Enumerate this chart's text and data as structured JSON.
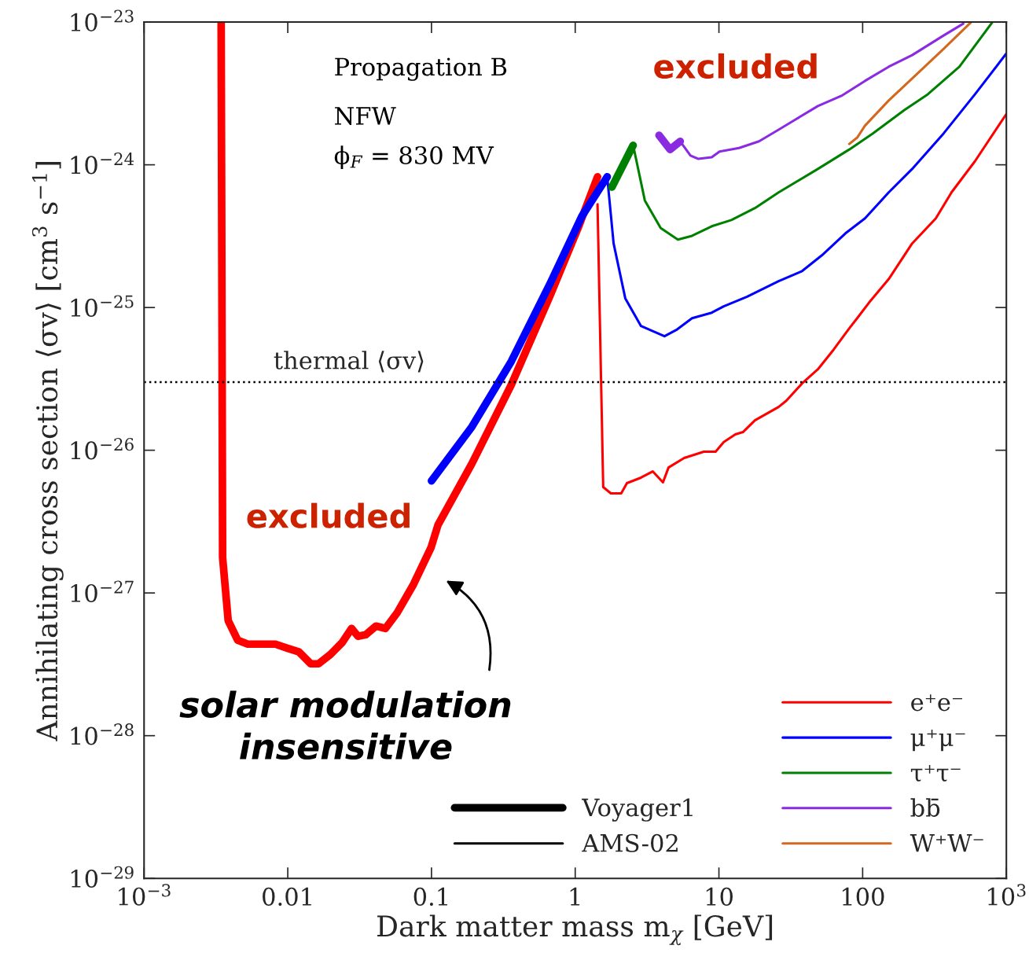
{
  "chart_data": {
    "type": "line",
    "xlabel": "Dark matter mass m$_{χ}$ [GeV]",
    "ylabel": "Annihilating cross section ⟨σv⟩ [cm$^{3}$ s$^{−1}$]",
    "log": "xy",
    "xlim": [
      0.001,
      1000
    ],
    "ylim": [
      1e-29,
      1e-23
    ],
    "xticks": [
      {
        "value": 0.001,
        "label": "10$^{−3}$"
      },
      0.01,
      0.1,
      1,
      10,
      100,
      {
        "value": 1000,
        "label": "10$^{3}$"
      }
    ],
    "yticks": [
      {
        "value": 1e-29,
        "label": "10$^{−29}$"
      },
      {
        "value": 1e-28,
        "label": "10$^{−28}$"
      },
      {
        "value": 1e-27,
        "label": "10$^{−27}$"
      },
      {
        "value": 1e-26,
        "label": "10$^{−26}$"
      },
      {
        "value": 1e-25,
        "label": "10$^{−25}$"
      },
      {
        "value": 1e-24,
        "label": "10$^{−24}$"
      },
      {
        "value": 1e-23,
        "label": "10$^{−23}$"
      }
    ],
    "grid": false,
    "legend": "bottom right",
    "series": [
      {
        "color": "#ff0000",
        "x": [
          0.00344,
          0.00352,
          0.00385,
          0.00448,
          0.00527,
          0.0082,
          0.0099,
          0.01197,
          0.01445,
          0.01637,
          0.0198,
          0.0239,
          0.0278,
          0.0308,
          0.0349,
          0.0411,
          0.0478,
          0.0577,
          0.0743,
          0.0993,
          0.111,
          0.191,
          0.359,
          0.673,
          1.047,
          1.43
        ],
        "values": [
          1e-23,
          1.77e-27,
          6.4e-28,
          4.67e-28,
          4.38e-28,
          4.38e-28,
          4.11e-28,
          3.86e-28,
          3.19e-28,
          3.19e-28,
          3.71e-28,
          4.49e-28,
          5.64e-28,
          4.97e-28,
          5.1e-28,
          5.86e-28,
          5.64e-28,
          7.26e-28,
          1.13e-27,
          2.08e-27,
          3e-27,
          8.07e-27,
          2.87e-26,
          1.23e-25,
          3.61e-25,
          8.24e-25
        ]
      },
      {
        "name": "e⁺e⁻",
        "color": "#ff0000",
        "x": [
          1.43,
          1.566,
          1.77,
          2.09,
          2.29,
          2.87,
          3.46,
          4.08,
          4.46,
          5.73,
          7.85,
          9.48,
          10.8,
          13.0,
          14.7,
          17.8,
          26.0,
          29.4,
          37.9,
          48.8,
          62.8,
          80.7,
          91.6,
          110.6,
          151.7,
          221,
          323,
          415,
          605,
          1000
        ],
        "values": [
          5.29e-25,
          5.52e-27,
          4.99e-27,
          4.99e-27,
          5.88e-27,
          6.43e-27,
          7.11e-27,
          5.96e-27,
          7.57e-27,
          8.83e-27,
          9.77e-27,
          9.77e-27,
          1.14e-26,
          1.29e-26,
          1.34e-26,
          1.62e-26,
          2.01e-26,
          2.22e-26,
          2.94e-26,
          3.69e-26,
          5.07e-26,
          7.14e-26,
          8.41e-26,
          1.08e-25,
          1.58e-25,
          2.81e-25,
          4.21e-25,
          6.4e-25,
          1.06e-24,
          2.27e-24
        ]
      },
      {
        "color": "#0000ff",
        "x": [
          0.1,
          0.191,
          0.359,
          0.673,
          1.114,
          1.67
        ],
        "values": [
          6.1e-27,
          1.46e-26,
          4.19e-26,
          1.49e-25,
          4.37e-25,
          8.24e-25
        ]
      },
      {
        "name": "μ⁺μ⁻",
        "color": "#0000ff",
        "x": [
          1.67,
          1.85,
          2.23,
          2.87,
          4.18,
          5.05,
          6.5,
          8.91,
          10.8,
          15.7,
          26.0,
          37.9,
          52.0,
          75.9,
          103.8,
          151.7,
          221,
          366,
          605,
          1000
        ],
        "values": [
          8.24e-25,
          2.81e-25,
          1.16e-25,
          7.42e-26,
          6.29e-26,
          6.96e-26,
          8.41e-26,
          9.2e-26,
          1.02e-25,
          1.19e-25,
          1.53e-25,
          1.8e-25,
          2.32e-25,
          3.31e-25,
          4.21e-25,
          6.4e-25,
          9.35e-25,
          1.66e-24,
          3.12e-24,
          6.03e-24
        ]
      },
      {
        "color": "#008000",
        "x": [
          1.8,
          2.53
        ],
        "values": [
          6.98e-25,
          1.37e-24
        ]
      },
      {
        "name": "τ⁺τ⁻",
        "color": "#008000",
        "x": [
          2.53,
          3.05,
          3.93,
          5.18,
          6.5,
          8.91,
          12.2,
          17.8,
          26.0,
          48.8,
          80.7,
          117.8,
          195,
          284,
          471,
          800
        ],
        "values": [
          1.37e-24,
          5.63e-25,
          3.61e-25,
          2.99e-25,
          3.18e-25,
          3.71e-25,
          4.1e-25,
          4.97e-25,
          6.4e-25,
          9.35e-25,
          1.28e-24,
          1.66e-24,
          2.42e-24,
          3.12e-24,
          4.86e-24,
          1e-23
        ]
      },
      {
        "color": "#8a2be2",
        "x": [
          3.83,
          4.57,
          5.38
        ],
        "values": [
          1.61e-24,
          1.28e-24,
          1.46e-24
        ]
      },
      {
        "name": "bb̄",
        "color": "#8a2be2",
        "x": [
          5.38,
          6.34,
          7.19,
          8.91,
          10.1,
          13.8,
          19.0,
          26.0,
          33.4,
          48.8,
          71.1,
          103.8,
          151.7,
          221,
          366,
          501
        ],
        "values": [
          1.46e-24,
          1.16e-24,
          1.1e-24,
          1.13e-24,
          1.24e-24,
          1.31e-24,
          1.46e-24,
          1.76e-24,
          2.05e-24,
          2.58e-24,
          3.04e-24,
          3.87e-24,
          4.86e-24,
          5.87e-24,
          8.06e-24,
          9.75e-24
        ]
      },
      {
        "name": "W⁺W⁻",
        "color": "#d2691e",
        "x": [
          80.7,
          91.6,
          103.8,
          151.7,
          221,
          366,
          569
        ],
        "values": [
          1.4e-24,
          1.55e-24,
          1.88e-24,
          2.82e-24,
          4.02e-24,
          6.5e-24,
          1e-23
        ]
      }
    ],
    "ref_lines": [
      {
        "axis": "y",
        "value": 3e-26,
        "label": "thermal ⟨σv⟩",
        "line_style": "dotted",
        "color": "#000000"
      }
    ],
    "annotations": [
      "Propagation B",
      "NFW",
      "ϕ$_{F}$ = 830 MV",
      "excluded",
      "excluded",
      "solar modulation\ninsensitive",
      "Voyager1",
      "AMS-02"
    ]
  }
}
